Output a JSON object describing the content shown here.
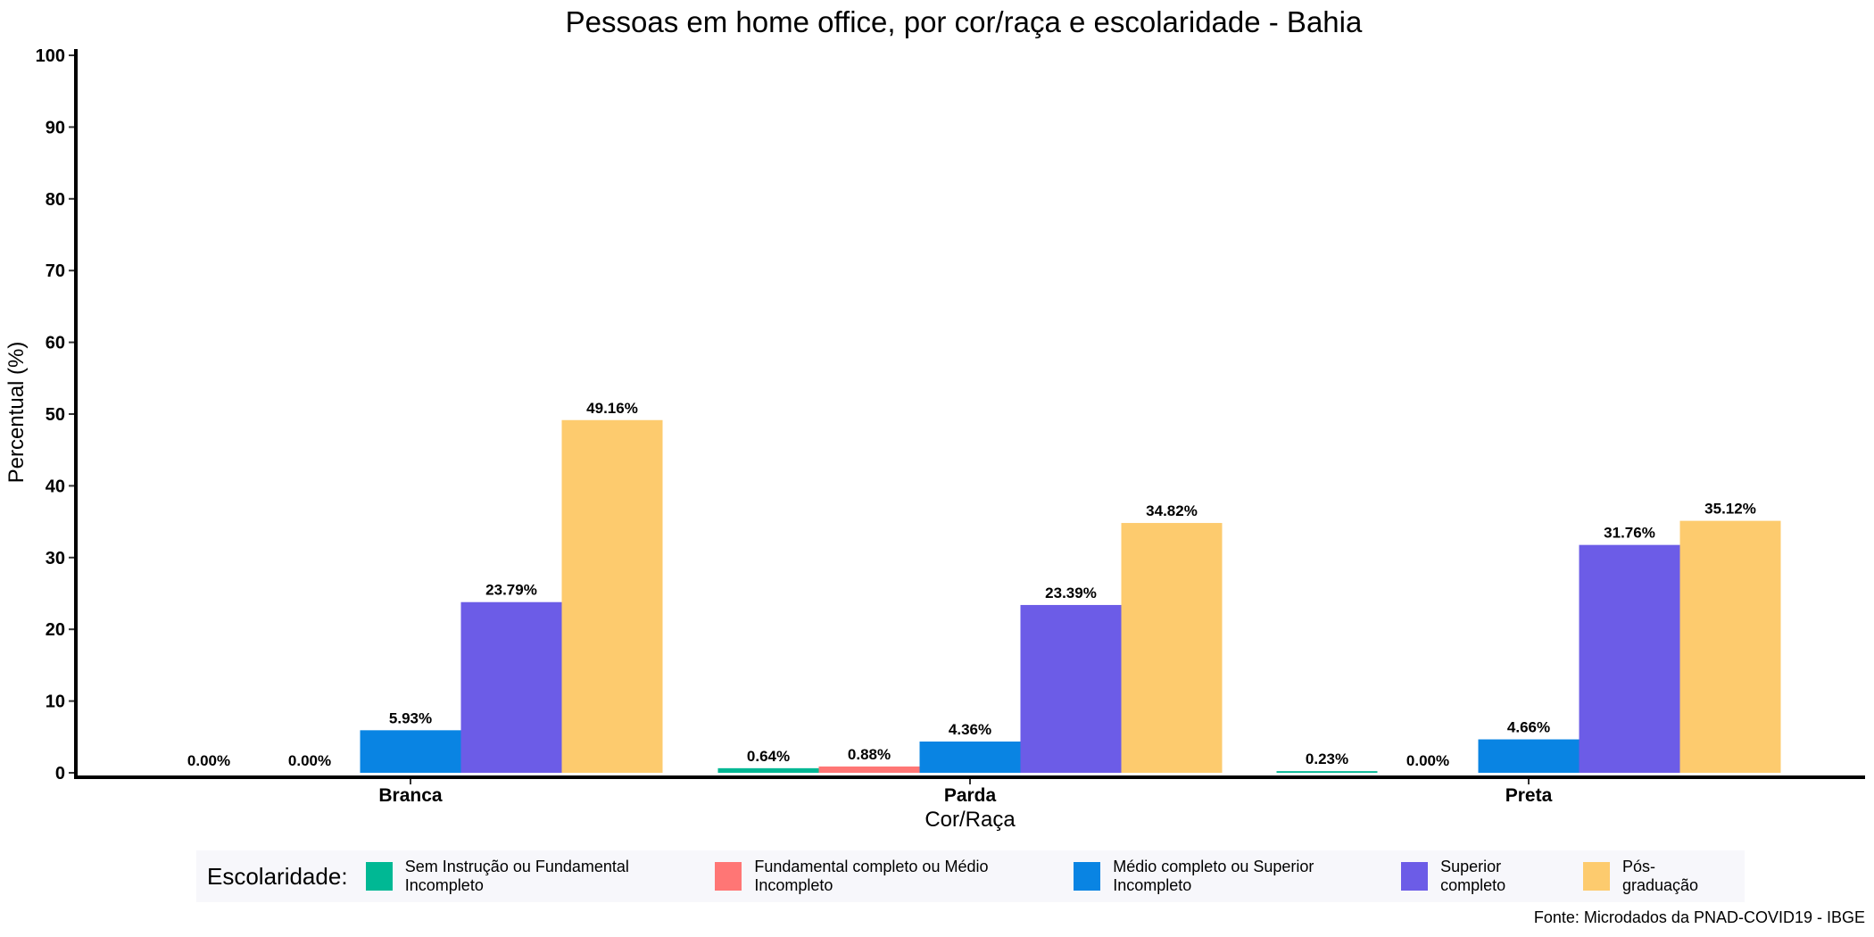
{
  "chart_data": {
    "type": "bar",
    "title": "Pessoas em home office, por cor/raça e escolaridade - Bahia",
    "xlabel": "Cor/Raça",
    "ylabel": "Percentual (%)",
    "ylim": [
      0,
      100
    ],
    "yticks": [
      0,
      10,
      20,
      30,
      40,
      50,
      60,
      70,
      80,
      90,
      100
    ],
    "categories": [
      "Branca",
      "Parda",
      "Preta"
    ],
    "series": [
      {
        "name": "Sem Instrução ou Fundamental Incompleto",
        "color": "#00b894",
        "values": [
          0.0,
          0.64,
          0.23
        ],
        "labels": [
          "0.00%",
          "0.64%",
          "0.23%"
        ]
      },
      {
        "name": "Fundamental completo ou Médio Incompleto",
        "color": "#ff7675",
        "values": [
          0.0,
          0.88,
          0.0
        ],
        "labels": [
          "0.00%",
          "0.88%",
          "0.00%"
        ]
      },
      {
        "name": "Médio completo ou Superior Incompleto",
        "color": "#0984e3",
        "values": [
          5.93,
          4.36,
          4.66
        ],
        "labels": [
          "5.93%",
          "4.36%",
          "4.66%"
        ]
      },
      {
        "name": "Superior completo",
        "color": "#6c5ce7",
        "values": [
          23.79,
          23.39,
          31.76
        ],
        "labels": [
          "23.79%",
          "23.39%",
          "31.76%"
        ]
      },
      {
        "name": "Pós-graduação",
        "color": "#fdcb6e",
        "values": [
          49.16,
          34.82,
          35.12
        ],
        "labels": [
          "49.16%",
          "34.82%",
          "35.12%"
        ]
      }
    ],
    "legend_title": "Escolaridade:",
    "legend_position": "bottom",
    "grid": false,
    "source": "Fonte: Microdados da PNAD-COVID19 - IBGE"
  }
}
